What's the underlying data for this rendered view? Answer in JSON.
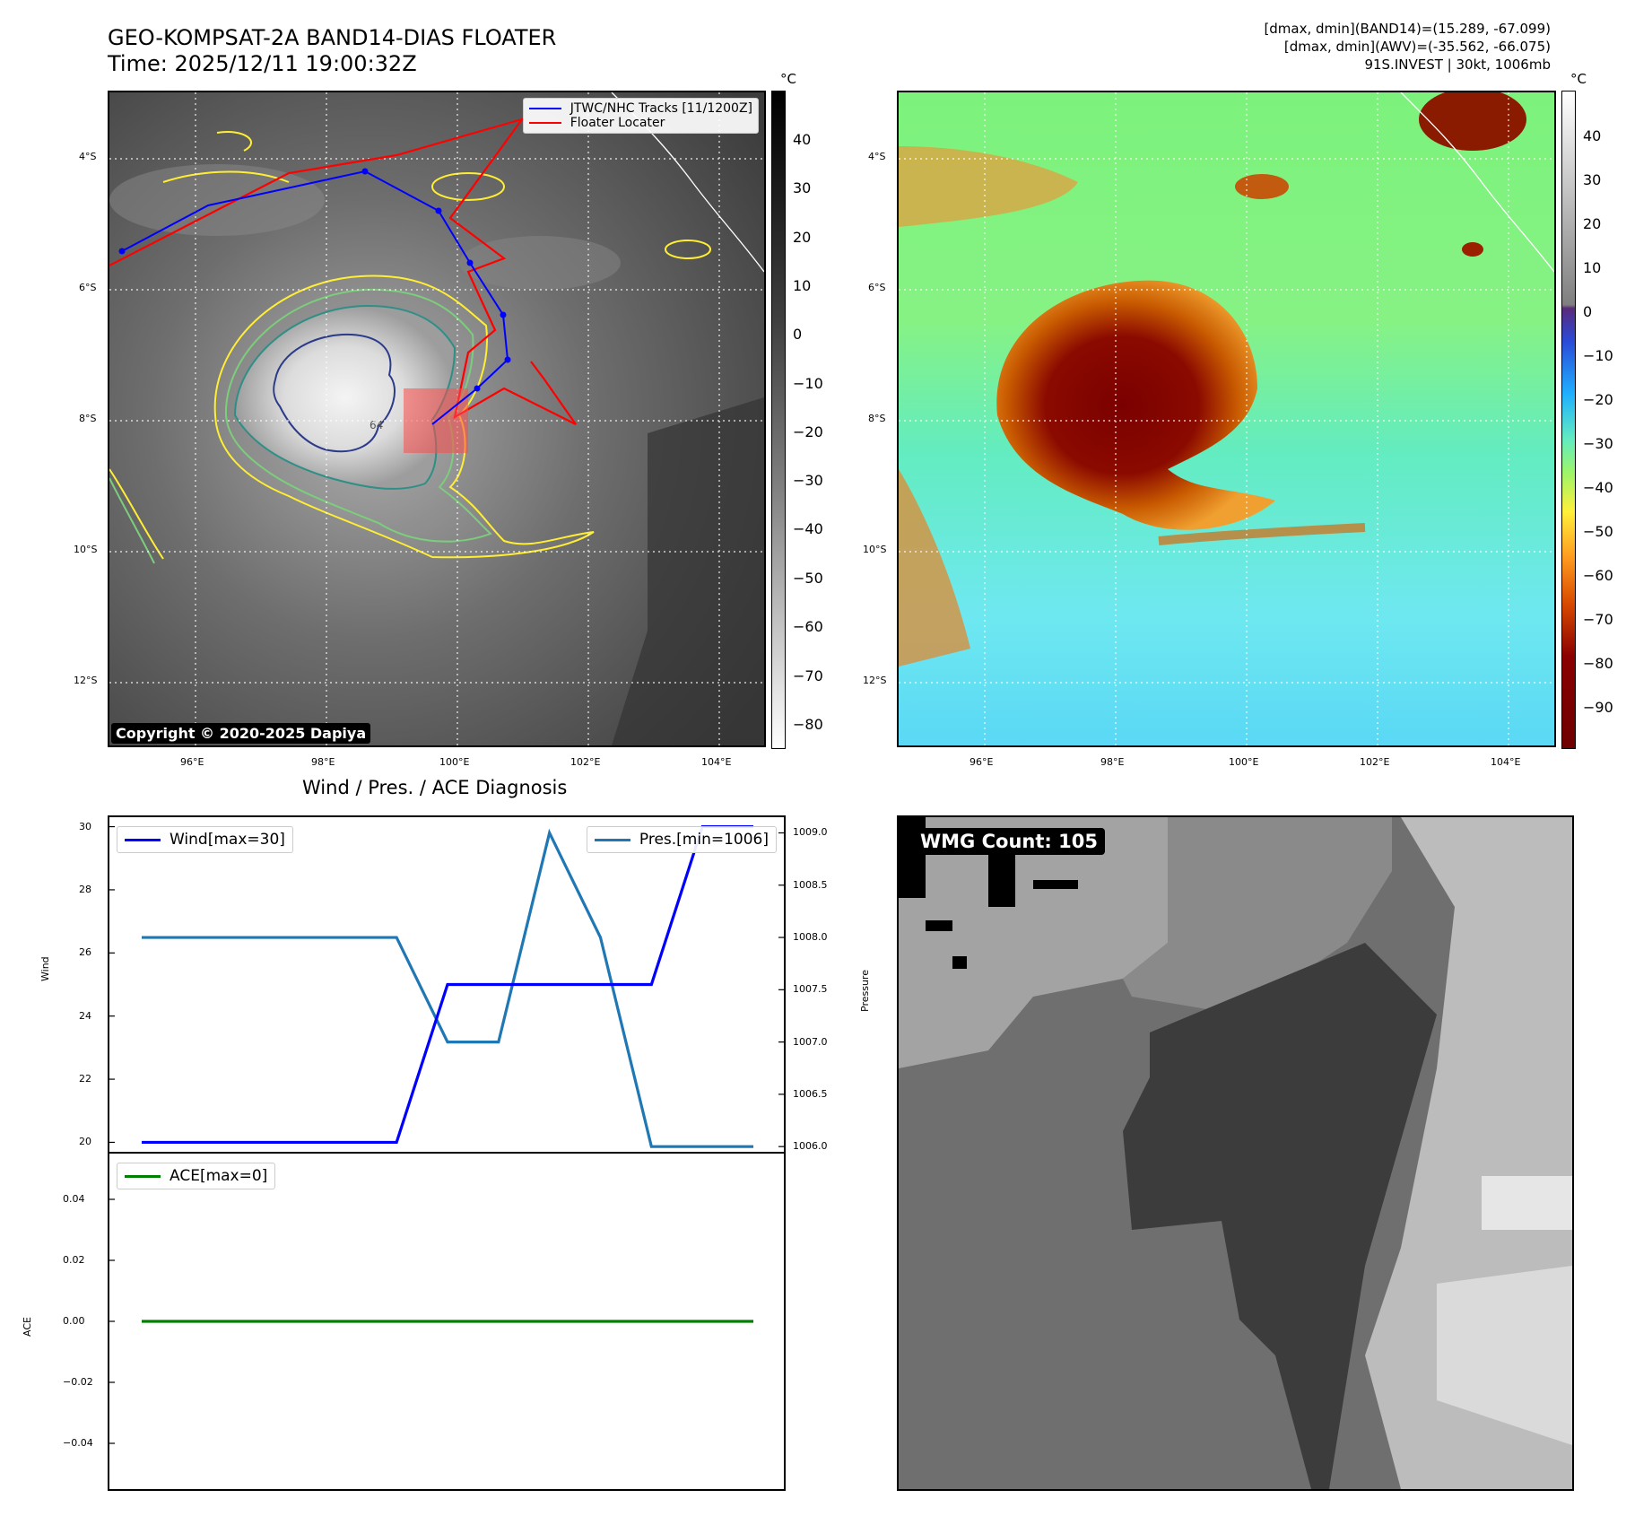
{
  "header": {
    "title_line1": "GEO-KOMPSAT-2A BAND14-DIAS FLOATER",
    "title_line2": "Time: 2025/12/11 19:00:32Z",
    "info_line1": "[dmax, dmin](BAND14)=(15.289, -67.099)",
    "info_line2": "[dmax, dmin](AWV)=(-35.562, -66.075)",
    "info_line3": "91S.INVEST | 30kt, 1006mb"
  },
  "ir_panel": {
    "lat_labels": [
      "4°S",
      "6°S",
      "8°S",
      "10°S",
      "12°S"
    ],
    "lon_labels": [
      "96°E",
      "98°E",
      "100°E",
      "102°E",
      "104°E"
    ],
    "legend": {
      "track": "JTWC/NHC Tracks [11/1200Z]",
      "locater": "Floater Locater"
    },
    "contour_label": "64",
    "copyright": "Copyright © 2020-2025 Dapiya",
    "colorbar": {
      "unit": "°C",
      "ticks": [
        "40",
        "30",
        "20",
        "10",
        "0",
        "−10",
        "−20",
        "−30",
        "−40",
        "−50",
        "−60",
        "−70",
        "−80"
      ]
    },
    "colors": {
      "track": "#0000ff",
      "locater": "#ff0000",
      "contour_yellow": "#ffee33",
      "contour_green": "#7ccd7c",
      "contour_teal": "#2f8f86",
      "contour_navy": "#2c3a8a"
    }
  },
  "enhanced_panel": {
    "lat_labels": [
      "4°S",
      "6°S",
      "8°S",
      "10°S",
      "12°S"
    ],
    "lon_labels": [
      "96°E",
      "98°E",
      "100°E",
      "102°E",
      "104°E"
    ],
    "colorbar": {
      "unit": "°C",
      "ticks": [
        "40",
        "30",
        "20",
        "10",
        "0",
        "−10",
        "−20",
        "−30",
        "−40",
        "−50",
        "−60",
        "−70",
        "−80",
        "−90"
      ]
    }
  },
  "diagnosis": {
    "title": "Wind / Pres. / ACE Diagnosis",
    "wind_legend": "Wind[max=30]",
    "pres_legend": "Pres.[min=1006]",
    "ace_legend": "ACE[max=0]",
    "wind_ylabel": "Wind",
    "pres_ylabel": "Pressure",
    "ace_ylabel": "ACE",
    "wind_ticks": [
      "30",
      "28",
      "26",
      "24",
      "22",
      "20"
    ],
    "pres_ticks": [
      "1009.0",
      "1008.5",
      "1008.0",
      "1007.5",
      "1007.0",
      "1006.5",
      "1006.0"
    ],
    "ace_ticks": [
      "0.04",
      "0.02",
      "0.00",
      "−0.02",
      "−0.04"
    ],
    "colors": {
      "wind": "#0000ff",
      "pres": "#1f77b4",
      "ace": "#008000"
    }
  },
  "wmg_panel": {
    "label": "WMG Count: 105"
  },
  "chart_data": [
    {
      "type": "line",
      "title": "Wind / Pres. / ACE Diagnosis",
      "x": [
        0,
        1,
        2,
        3,
        4,
        5,
        6,
        7,
        8,
        9,
        10,
        11,
        12
      ],
      "series": [
        {
          "name": "Wind[max=30]",
          "axis": "left",
          "values": [
            20,
            20,
            20,
            20,
            20,
            20,
            25,
            25,
            25,
            25,
            25,
            30,
            30
          ]
        },
        {
          "name": "Pres.[min=1006]",
          "axis": "right",
          "values": [
            1008,
            1008,
            1008,
            1008,
            1008,
            1008,
            1007,
            1007,
            1009,
            1008,
            1006,
            1006,
            1006
          ]
        }
      ],
      "ylabel": "Wind",
      "y2label": "Pressure",
      "ylim": [
        19.7,
        30.3
      ],
      "y2lim": [
        1005.95,
        1009.15
      ]
    },
    {
      "type": "line",
      "x": [
        0,
        1,
        2,
        3,
        4,
        5,
        6,
        7,
        8,
        9,
        10,
        11,
        12
      ],
      "series": [
        {
          "name": "ACE[max=0]",
          "values": [
            0,
            0,
            0,
            0,
            0,
            0,
            0,
            0,
            0,
            0,
            0,
            0,
            0
          ]
        }
      ],
      "ylabel": "ACE",
      "ylim": [
        -0.055,
        0.055
      ]
    }
  ]
}
